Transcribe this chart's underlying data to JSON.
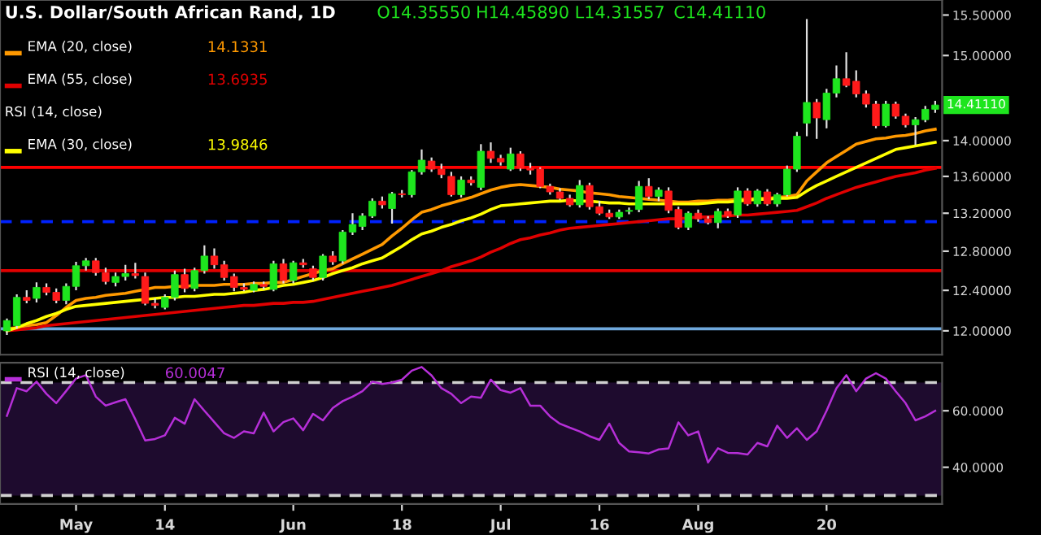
{
  "chart_data": [
    {
      "type": "candlestick",
      "title": "U.S. Dollar/South African Rand, 1D",
      "categories": [
        null,
        null,
        null,
        null,
        null,
        null,
        null,
        null,
        null,
        null,
        null,
        null,
        null,
        null,
        null,
        null,
        null,
        null,
        null,
        null,
        null,
        null,
        null,
        null,
        null,
        null,
        null,
        null,
        null,
        null,
        null,
        null,
        null,
        null,
        null,
        null,
        null,
        null,
        null,
        null,
        null,
        null,
        null,
        null,
        null,
        null,
        null,
        null,
        null,
        null,
        null,
        null,
        null,
        null,
        null,
        null,
        null,
        null,
        null,
        null,
        null,
        null,
        null,
        null,
        null,
        null,
        null,
        null,
        null,
        null,
        null,
        null,
        null,
        null,
        null,
        null,
        null,
        null,
        null,
        null,
        null,
        null,
        null,
        null,
        null,
        null,
        null,
        null,
        null,
        null,
        null,
        null,
        null,
        null,
        null
      ],
      "ohlc": [
        [
          12.0,
          12.12,
          11.96,
          12.1
        ],
        [
          12.05,
          12.36,
          12.02,
          12.33
        ],
        [
          12.33,
          12.4,
          12.27,
          12.3
        ],
        [
          12.32,
          12.48,
          12.28,
          12.43
        ],
        [
          12.43,
          12.47,
          12.35,
          12.38
        ],
        [
          12.38,
          12.42,
          12.27,
          12.3
        ],
        [
          12.3,
          12.47,
          12.26,
          12.44
        ],
        [
          12.44,
          12.69,
          12.4,
          12.65
        ],
        [
          12.65,
          12.73,
          12.6,
          12.7
        ],
        [
          12.7,
          12.73,
          12.55,
          12.58
        ],
        [
          12.58,
          12.63,
          12.46,
          12.49
        ],
        [
          12.48,
          12.58,
          12.44,
          12.54
        ],
        [
          12.54,
          12.66,
          12.5,
          12.57
        ],
        [
          12.57,
          12.68,
          12.52,
          12.55
        ],
        [
          12.54,
          12.58,
          12.25,
          12.27
        ],
        [
          12.27,
          12.32,
          12.22,
          12.25
        ],
        [
          12.23,
          12.36,
          12.21,
          12.33
        ],
        [
          12.33,
          12.6,
          12.3,
          12.56
        ],
        [
          12.56,
          12.62,
          12.38,
          12.42
        ],
        [
          12.42,
          12.63,
          12.39,
          12.6
        ],
        [
          12.6,
          12.86,
          12.57,
          12.75
        ],
        [
          12.75,
          12.83,
          12.62,
          12.66
        ],
        [
          12.66,
          12.7,
          12.5,
          12.53
        ],
        [
          12.54,
          12.57,
          12.39,
          12.43
        ],
        [
          12.43,
          12.47,
          12.39,
          12.41
        ],
        [
          12.4,
          12.49,
          12.38,
          12.46
        ],
        [
          12.46,
          12.49,
          12.41,
          12.44
        ],
        [
          12.41,
          12.7,
          12.39,
          12.67
        ],
        [
          12.67,
          12.72,
          12.47,
          12.5
        ],
        [
          12.5,
          12.7,
          12.47,
          12.68
        ],
        [
          12.68,
          12.72,
          12.63,
          12.66
        ],
        [
          12.62,
          12.65,
          12.5,
          12.53
        ],
        [
          12.53,
          12.77,
          12.5,
          12.75
        ],
        [
          12.75,
          12.8,
          12.66,
          12.69
        ],
        [
          12.7,
          13.02,
          12.67,
          13.0
        ],
        [
          13.0,
          13.2,
          12.97,
          13.08
        ],
        [
          13.06,
          13.2,
          13.02,
          13.17
        ],
        [
          13.17,
          13.36,
          13.15,
          13.33
        ],
        [
          13.33,
          13.38,
          13.25,
          13.29
        ],
        [
          13.25,
          13.43,
          13.09,
          13.41
        ],
        [
          13.41,
          13.45,
          13.37,
          13.4
        ],
        [
          13.4,
          13.67,
          13.37,
          13.65
        ],
        [
          13.65,
          13.9,
          13.62,
          13.78
        ],
        [
          13.77,
          13.81,
          13.65,
          13.68
        ],
        [
          13.68,
          13.74,
          13.58,
          13.62
        ],
        [
          13.6,
          13.65,
          13.38,
          13.4
        ],
        [
          13.4,
          13.6,
          13.37,
          13.56
        ],
        [
          13.56,
          13.6,
          13.5,
          13.53
        ],
        [
          13.48,
          13.96,
          13.45,
          13.88
        ],
        [
          13.88,
          13.98,
          13.75,
          13.8
        ],
        [
          13.8,
          13.84,
          13.72,
          13.76
        ],
        [
          13.68,
          13.92,
          13.66,
          13.85
        ],
        [
          13.85,
          13.88,
          13.66,
          13.69
        ],
        [
          13.69,
          13.75,
          13.62,
          13.67
        ],
        [
          13.68,
          13.7,
          13.47,
          13.49
        ],
        [
          13.49,
          13.52,
          13.4,
          13.43
        ],
        [
          13.43,
          13.47,
          13.34,
          13.36
        ],
        [
          13.36,
          13.4,
          13.27,
          13.29
        ],
        [
          13.29,
          13.56,
          13.26,
          13.5
        ],
        [
          13.5,
          13.53,
          13.24,
          13.27
        ],
        [
          13.27,
          13.33,
          13.18,
          13.2
        ],
        [
          13.2,
          13.24,
          13.14,
          13.16
        ],
        [
          13.16,
          13.24,
          13.14,
          13.21
        ],
        [
          13.22,
          13.26,
          13.19,
          13.23
        ],
        [
          13.24,
          13.55,
          13.21,
          13.49
        ],
        [
          13.49,
          13.58,
          13.35,
          13.38
        ],
        [
          13.38,
          13.48,
          13.33,
          13.45
        ],
        [
          13.44,
          13.48,
          13.2,
          13.23
        ],
        [
          13.24,
          13.27,
          13.03,
          13.05
        ],
        [
          13.05,
          13.22,
          13.02,
          13.2
        ],
        [
          13.2,
          13.24,
          13.11,
          13.14
        ],
        [
          13.14,
          13.17,
          13.08,
          13.1
        ],
        [
          13.1,
          13.25,
          13.04,
          13.22
        ],
        [
          13.22,
          13.25,
          13.15,
          13.17
        ],
        [
          13.18,
          13.48,
          13.15,
          13.44
        ],
        [
          13.44,
          13.47,
          13.28,
          13.3
        ],
        [
          13.3,
          13.46,
          13.27,
          13.44
        ],
        [
          13.43,
          13.46,
          13.28,
          13.3
        ],
        [
          13.3,
          13.42,
          13.27,
          13.4
        ],
        [
          13.4,
          13.72,
          13.38,
          13.68
        ],
        [
          13.68,
          14.1,
          13.65,
          14.05
        ],
        [
          14.2,
          15.45,
          14.05,
          14.44
        ],
        [
          14.44,
          14.48,
          14.02,
          14.26
        ],
        [
          14.24,
          14.6,
          14.14,
          14.55
        ],
        [
          14.55,
          14.88,
          14.5,
          14.72
        ],
        [
          14.72,
          15.04,
          14.62,
          14.64
        ],
        [
          14.69,
          14.82,
          14.5,
          14.54
        ],
        [
          14.54,
          14.58,
          14.38,
          14.42
        ],
        [
          14.42,
          14.46,
          14.14,
          14.17
        ],
        [
          14.17,
          14.46,
          14.15,
          14.42
        ],
        [
          14.42,
          14.45,
          14.25,
          14.28
        ],
        [
          14.28,
          14.31,
          14.15,
          14.18
        ],
        [
          14.18,
          14.27,
          13.95,
          14.24
        ],
        [
          14.24,
          14.4,
          14.21,
          14.36
        ],
        [
          14.36,
          14.46,
          14.32,
          14.41
        ]
      ],
      "colors": [
        "#1ee51e",
        "#1ee51e",
        "#ff1a1a",
        "#1ee51e",
        "#ff1a1a",
        "#ff1a1a",
        "#1ee51e",
        "#1ee51e",
        "#1ee51e",
        "#ff1a1a",
        "#ff1a1a",
        "#1ee51e",
        "#1ee51e",
        "#ff1a1a",
        "#ff1a1a",
        "#ff1a1a",
        "#1ee51e",
        "#1ee51e",
        "#ff1a1a",
        "#1ee51e",
        "#1ee51e",
        "#ff1a1a",
        "#ff1a1a",
        "#ff1a1a",
        "#ff1a1a",
        "#1ee51e",
        "#ff1a1a",
        "#1ee51e",
        "#ff1a1a",
        "#1ee51e",
        "#ff1a1a",
        "#ff1a1a",
        "#1ee51e",
        "#ff1a1a",
        "#1ee51e",
        "#1ee51e",
        "#1ee51e",
        "#1ee51e",
        "#ff1a1a",
        "#1ee51e",
        "#ff1a1a",
        "#1ee51e",
        "#1ee51e",
        "#ff1a1a",
        "#ff1a1a",
        "#ff1a1a",
        "#1ee51e",
        "#ff1a1a",
        "#1ee51e",
        "#ff1a1a",
        "#ff1a1a",
        "#1ee51e",
        "#ff1a1a",
        "#ff1a1a",
        "#ff1a1a",
        "#ff1a1a",
        "#ff1a1a",
        "#ff1a1a",
        "#1ee51e",
        "#ff1a1a",
        "#ff1a1a",
        "#ff1a1a",
        "#1ee51e",
        "#1ee51e",
        "#1ee51e",
        "#ff1a1a",
        "#1ee51e",
        "#ff1a1a",
        "#ff1a1a",
        "#1ee51e",
        "#ff1a1a",
        "#ff1a1a",
        "#1ee51e",
        "#ff1a1a",
        "#1ee51e",
        "#ff1a1a",
        "#1ee51e",
        "#ff1a1a",
        "#1ee51e",
        "#1ee51e",
        "#1ee51e",
        "#1ee51e",
        "#ff1a1a",
        "#1ee51e",
        "#1ee51e",
        "#ff1a1a",
        "#ff1a1a",
        "#ff1a1a",
        "#ff1a1a",
        "#1ee51e",
        "#ff1a1a",
        "#ff1a1a",
        "#1ee51e",
        "#1ee51e",
        "#1ee51e"
      ],
      "series": [
        {
          "name": "EMA (20, close)",
          "type": "line",
          "color": "#ff9900",
          "values": [
            12.02,
            12.03,
            12.05,
            12.06,
            12.08,
            12.15,
            12.23,
            12.3,
            12.32,
            12.33,
            12.35,
            12.36,
            12.37,
            12.39,
            12.41,
            12.43,
            12.43,
            12.44,
            12.44,
            12.45,
            12.45,
            12.45,
            12.46,
            12.46,
            12.46,
            12.47,
            12.47,
            12.48,
            12.48,
            12.51,
            12.54,
            12.57,
            12.6,
            12.62,
            12.67,
            12.72,
            12.77,
            12.82,
            12.87,
            12.96,
            13.04,
            13.13,
            13.21,
            13.24,
            13.28,
            13.31,
            13.34,
            13.37,
            13.41,
            13.45,
            13.48,
            13.5,
            13.51,
            13.5,
            13.49,
            13.48,
            13.46,
            13.45,
            13.44,
            13.42,
            13.41,
            13.4,
            13.38,
            13.37,
            13.36,
            13.35,
            13.34,
            13.33,
            13.32,
            13.32,
            13.33,
            13.33,
            13.34,
            13.34,
            13.35,
            13.35,
            13.36,
            13.36,
            13.37,
            13.38,
            13.4,
            13.55,
            13.65,
            13.75,
            13.82,
            13.89,
            13.96,
            13.99,
            14.02,
            14.03,
            14.05,
            14.06,
            14.08,
            14.11,
            14.13
          ]
        },
        {
          "name": "EMA (55, close)",
          "type": "line",
          "color": "#e00000",
          "values": [
            12.0,
            12.01,
            12.02,
            12.03,
            12.05,
            12.06,
            12.07,
            12.08,
            12.09,
            12.1,
            12.11,
            12.12,
            12.13,
            12.14,
            12.15,
            12.16,
            12.17,
            12.18,
            12.19,
            12.2,
            12.21,
            12.22,
            12.23,
            12.24,
            12.25,
            12.25,
            12.26,
            12.27,
            12.27,
            12.28,
            12.28,
            12.29,
            12.31,
            12.33,
            12.35,
            12.37,
            12.39,
            12.41,
            12.43,
            12.45,
            12.48,
            12.51,
            12.54,
            12.57,
            12.6,
            12.64,
            12.67,
            12.7,
            12.74,
            12.79,
            12.83,
            12.88,
            12.92,
            12.94,
            12.97,
            12.99,
            13.02,
            13.04,
            13.05,
            13.06,
            13.07,
            13.08,
            13.09,
            13.1,
            13.11,
            13.12,
            13.13,
            13.14,
            13.14,
            13.15,
            13.16,
            13.16,
            13.17,
            13.17,
            13.18,
            13.18,
            13.19,
            13.2,
            13.21,
            13.22,
            13.23,
            13.27,
            13.31,
            13.36,
            13.4,
            13.44,
            13.48,
            13.51,
            13.54,
            13.57,
            13.6,
            13.62,
            13.64,
            13.67,
            13.69
          ]
        },
        {
          "name": "EMA (30, close)",
          "type": "line",
          "color": "#ffff00",
          "values": [
            12.0,
            12.03,
            12.07,
            12.1,
            12.14,
            12.17,
            12.21,
            12.24,
            12.25,
            12.26,
            12.27,
            12.28,
            12.29,
            12.3,
            12.31,
            12.32,
            12.33,
            12.33,
            12.34,
            12.34,
            12.35,
            12.36,
            12.36,
            12.37,
            12.38,
            12.4,
            12.41,
            12.43,
            12.45,
            12.46,
            12.48,
            12.5,
            12.53,
            12.57,
            12.6,
            12.63,
            12.67,
            12.7,
            12.73,
            12.79,
            12.85,
            12.92,
            12.98,
            13.01,
            13.05,
            13.08,
            13.12,
            13.15,
            13.19,
            13.24,
            13.28,
            13.29,
            13.3,
            13.31,
            13.32,
            13.33,
            13.33,
            13.34,
            13.33,
            13.33,
            13.32,
            13.31,
            13.31,
            13.3,
            13.3,
            13.3,
            13.3,
            13.3,
            13.3,
            13.3,
            13.3,
            13.31,
            13.32,
            13.32,
            13.33,
            13.34,
            13.35,
            13.35,
            13.36,
            13.36,
            13.37,
            13.44,
            13.5,
            13.55,
            13.6,
            13.65,
            13.7,
            13.75,
            13.8,
            13.85,
            13.9,
            13.92,
            13.94,
            13.96,
            13.98
          ]
        }
      ],
      "annotations": [
        "O14.35550",
        "H14.45890",
        "L14.31557",
        "C14.41110",
        "14.1331",
        "13.6935",
        "13.9846",
        "RSI (14, close)",
        "14.41110"
      ],
      "log": true,
      "ylim": [
        11.77,
        15.69
      ],
      "yticks": [
        {
          "value": 12.0,
          "label": "12.00000"
        },
        {
          "value": 12.4,
          "label": "12.40000"
        },
        {
          "value": 12.8,
          "label": "12.80000"
        },
        {
          "value": 13.2,
          "label": "13.20000"
        },
        {
          "value": 13.6,
          "label": "13.60000"
        },
        {
          "value": 14.0,
          "label": "14.00000"
        },
        {
          "value": 15.0,
          "label": "15.00000"
        },
        {
          "value": 15.5,
          "label": "15.50000"
        }
      ],
      "ref_lines": [
        {
          "axis": "y",
          "value": 13.7,
          "color": "#ff0000"
        },
        {
          "axis": "y",
          "value": 13.11,
          "color": "#0022ff",
          "line_style": "dashed"
        },
        {
          "axis": "y",
          "value": 12.6,
          "color": "#e00000"
        },
        {
          "axis": "y",
          "value": 12.02,
          "color": "#6fa8dc"
        }
      ],
      "legend": "top left",
      "tick_labels": "y"
    },
    {
      "type": "line",
      "categories": [
        null,
        null,
        null,
        null,
        null,
        null,
        null,
        "May",
        null,
        null,
        null,
        null,
        null,
        null,
        null,
        null,
        "14",
        null,
        null,
        null,
        null,
        null,
        null,
        null,
        null,
        null,
        null,
        null,
        null,
        "Jun",
        null,
        null,
        null,
        null,
        null,
        null,
        null,
        null,
        null,
        null,
        "18",
        null,
        null,
        null,
        null,
        null,
        null,
        null,
        null,
        null,
        "Jul",
        null,
        null,
        null,
        null,
        null,
        null,
        null,
        null,
        null,
        "16",
        null,
        null,
        null,
        null,
        null,
        null,
        null,
        null,
        null,
        "Aug",
        null,
        null,
        null,
        null,
        null,
        null,
        null,
        null,
        null,
        null,
        null,
        null,
        "20",
        null,
        null,
        null,
        null,
        null,
        null,
        null,
        null,
        null,
        null,
        null
      ],
      "series": [
        {
          "name": "RSI (14, close)",
          "color": "#b62fd8",
          "values": [
            58.2,
            68,
            66.9,
            70.3,
            66,
            62.7,
            67,
            71.4,
            72.6,
            65,
            61.8,
            63,
            64.1,
            57,
            49.5,
            50,
            51.3,
            57.5,
            55.4,
            64.1,
            60,
            56,
            52,
            50.4,
            52.7,
            52,
            59.3,
            52.7,
            56,
            57.3,
            53.1,
            58.9,
            56.6,
            61,
            63.4,
            65,
            66.9,
            70.3,
            69.5,
            70,
            71,
            74.2,
            75.5,
            72.5,
            68,
            66,
            62.7,
            65,
            64.6,
            71,
            67.3,
            66.4,
            68,
            61.8,
            61.8,
            58,
            55.4,
            54,
            52.7,
            51,
            49.7,
            55.4,
            48.6,
            45.6,
            45.3,
            44.9,
            46.3,
            46.7,
            55.9,
            51.3,
            52.7,
            41.7,
            46.7,
            45.1,
            45,
            44.5,
            48.6,
            47.4,
            54.7,
            50.4,
            53.8,
            49.7,
            52.7,
            60,
            68,
            72.6,
            66.9,
            71.4,
            73.3,
            71.4,
            66.9,
            62.7,
            56.6,
            58,
            60
          ]
        }
      ],
      "annotations": [
        "60.0047"
      ],
      "ylim": [
        27,
        77
      ],
      "yticks": [
        {
          "value": 40,
          "label": "40.0000"
        },
        {
          "value": 60,
          "label": "60.0000"
        }
      ],
      "ref_lines": [
        {
          "axis": "y",
          "value": 70,
          "color": "#d0d0d0",
          "line_style": "dashed"
        },
        {
          "axis": "y",
          "value": 30,
          "color": "#d0d0d0",
          "line_style": "dashed"
        }
      ],
      "bands": [
        {
          "axis": "y",
          "from": 30,
          "to": 70,
          "color": "#1e0b2e"
        }
      ],
      "legend": "top left"
    }
  ]
}
